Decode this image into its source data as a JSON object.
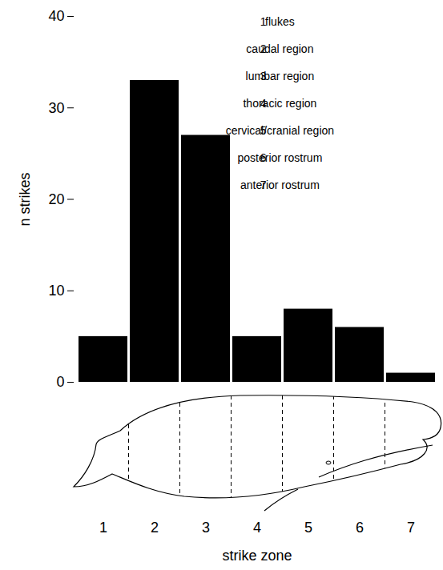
{
  "chart_data": {
    "type": "bar",
    "categories": [
      "1",
      "2",
      "3",
      "4",
      "5",
      "6",
      "7"
    ],
    "values": [
      5,
      33,
      27,
      5,
      8,
      6,
      1
    ],
    "color": "#000000",
    "xlabel": "strike zone",
    "ylabel": "n strikes",
    "ylim": [
      0,
      40
    ],
    "yticks": [
      0,
      10,
      20,
      30,
      40
    ],
    "zone_names": [
      "flukes",
      "caudal region",
      "lumbar region",
      "thoracic region",
      "cervical/cranial region",
      "posterior rostrum",
      "anterior rostrum"
    ]
  }
}
